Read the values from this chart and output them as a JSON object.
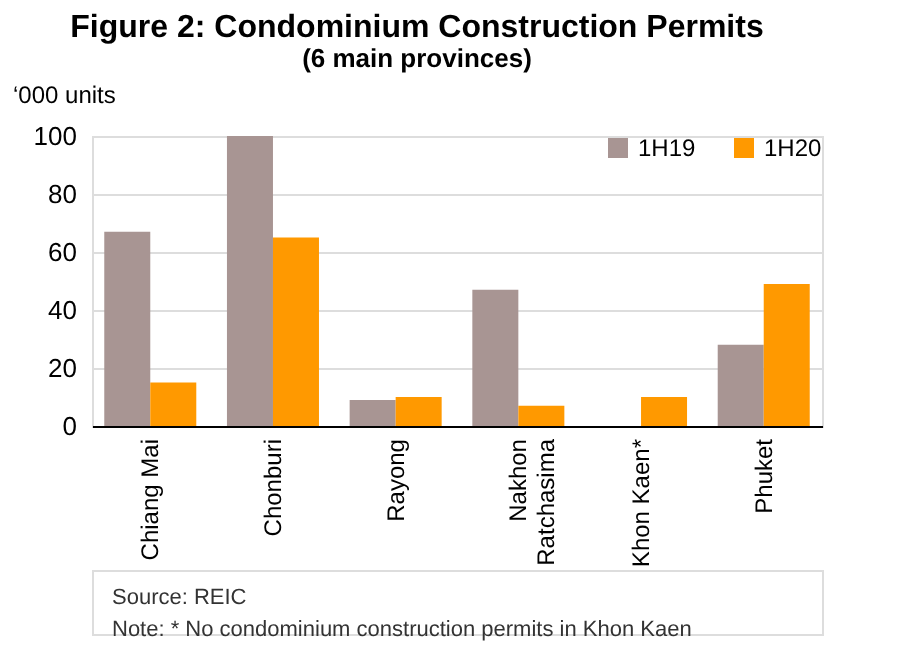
{
  "chart_data": {
    "type": "bar",
    "title": "Figure 2: Condominium Construction Permits",
    "subtitle": "(6 main provinces)",
    "ylabel": "‘000 units",
    "categories": [
      "Chiang Mai",
      "Chonburi",
      "Rayong",
      "Nakhon Ratchasima",
      "Khon Kaen*",
      "Phuket"
    ],
    "series": [
      {
        "name": "1H19",
        "color": "#a89593",
        "values": [
          67,
          100,
          9,
          47,
          0,
          28
        ]
      },
      {
        "name": "1H20",
        "color": "#ff9900",
        "values": [
          15,
          65,
          10,
          7,
          10,
          49
        ]
      }
    ],
    "ylim": [
      0,
      100
    ],
    "yticks": [
      0,
      20,
      40,
      60,
      80,
      100
    ],
    "grid": "y",
    "legend": "top right",
    "annotations": [
      "Source: REIC",
      "Note: * No condominium construction permits in Khon Kaen"
    ]
  }
}
